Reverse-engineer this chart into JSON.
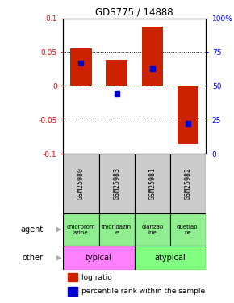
{
  "title": "GDS775 / 14888",
  "samples": [
    "GSM25980",
    "GSM25983",
    "GSM25981",
    "GSM25982"
  ],
  "log_ratios": [
    0.055,
    0.038,
    0.088,
    -0.085
  ],
  "percentile_ranks": [
    0.67,
    0.44,
    0.63,
    0.22
  ],
  "agents": [
    "chlorprom\nazine",
    "thioridazin\ne",
    "olanzap\nine",
    "quetiapi\nne"
  ],
  "agent_colors_typical": "#90ee90",
  "agent_colors_atypical": "#90ee90",
  "other_typical": "typical",
  "other_atypical": "atypical",
  "typical_color": "#ff80ff",
  "atypical_color": "#80ff80",
  "bar_color": "#cc2200",
  "dot_color": "#0000cc",
  "ylim": [
    -0.1,
    0.1
  ],
  "yticks_left": [
    -0.1,
    -0.05,
    0,
    0.05,
    0.1
  ],
  "yticks_right": [
    0,
    25,
    50,
    75,
    100
  ],
  "ytick_labels_right": [
    "0",
    "25",
    "50",
    "75",
    "100%"
  ],
  "sample_bg": "#cccccc",
  "background_color": "#ffffff",
  "legend_log_ratio": "log ratio",
  "legend_pct": "percentile rank within the sample",
  "arrow_color": "#aaaaaa"
}
